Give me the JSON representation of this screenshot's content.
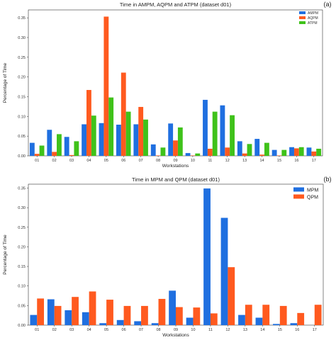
{
  "chart_data": [
    {
      "type": "bar",
      "panel_label": "(a)",
      "title": "Time in AMPM, AQPM and ATPM (dataset d01)",
      "xlabel": "Workstations",
      "ylabel": "Percentage of Time",
      "ylim": [
        0,
        0.37
      ],
      "yticks": [
        "0.00",
        "0.05",
        "0.10",
        "0.15",
        "0.20",
        "0.25",
        "0.30",
        "0.35"
      ],
      "legend_position": "top-right",
      "categories": [
        "01",
        "02",
        "03",
        "04",
        "05",
        "06",
        "07",
        "08",
        "09",
        "10",
        "11",
        "12",
        "13",
        "14",
        "15",
        "16",
        "17"
      ],
      "series": [
        {
          "name": "AMPM",
          "color": "#1f6fe0",
          "values": [
            0.033,
            0.066,
            0.048,
            0.08,
            0.083,
            0.079,
            0.08,
            0.029,
            0.082,
            0.007,
            0.142,
            0.128,
            0.037,
            0.043,
            0.015,
            0.022,
            0.021
          ]
        },
        {
          "name": "AQPM",
          "color": "#ff5a1f",
          "values": [
            0.005,
            0.01,
            0.002,
            0.167,
            0.353,
            0.211,
            0.124,
            0.001,
            0.039,
            0.001,
            0.018,
            0.021,
            0.006,
            0.003,
            0.001,
            0.019,
            0.011
          ]
        },
        {
          "name": "ATPM",
          "color": "#3fc21a",
          "values": [
            0.026,
            0.055,
            0.037,
            0.102,
            0.148,
            0.112,
            0.092,
            0.021,
            0.072,
            0.006,
            0.112,
            0.103,
            0.03,
            0.033,
            0.015,
            0.022,
            0.018
          ]
        }
      ]
    },
    {
      "type": "bar",
      "panel_label": "(b)",
      "title": "Time in MPM and QPM (dataset d01)",
      "xlabel": "Workstations",
      "ylabel": "Percentage of Time",
      "ylim": [
        0,
        0.36
      ],
      "yticks": [
        "0.00",
        "0.05",
        "0.10",
        "0.15",
        "0.20",
        "0.25",
        "0.30",
        "0.35"
      ],
      "legend_position": "top-right",
      "categories": [
        "01",
        "02",
        "03",
        "04",
        "05",
        "06",
        "07",
        "08",
        "09",
        "10",
        "11",
        "12",
        "13",
        "14",
        "15",
        "16",
        "17"
      ],
      "series": [
        {
          "name": "MPM",
          "color": "#1f6fe0",
          "values": [
            0.026,
            0.066,
            0.038,
            0.033,
            0.005,
            0.013,
            0.01,
            0.005,
            0.088,
            0.019,
            0.349,
            0.274,
            0.026,
            0.019,
            0.003,
            0.005,
            0.0
          ]
        },
        {
          "name": "QPM",
          "color": "#ff5a1f",
          "values": [
            0.068,
            0.049,
            0.072,
            0.086,
            0.065,
            0.049,
            0.049,
            0.067,
            0.046,
            0.045,
            0.03,
            0.148,
            0.052,
            0.052,
            0.049,
            0.031,
            0.052
          ]
        }
      ]
    }
  ]
}
